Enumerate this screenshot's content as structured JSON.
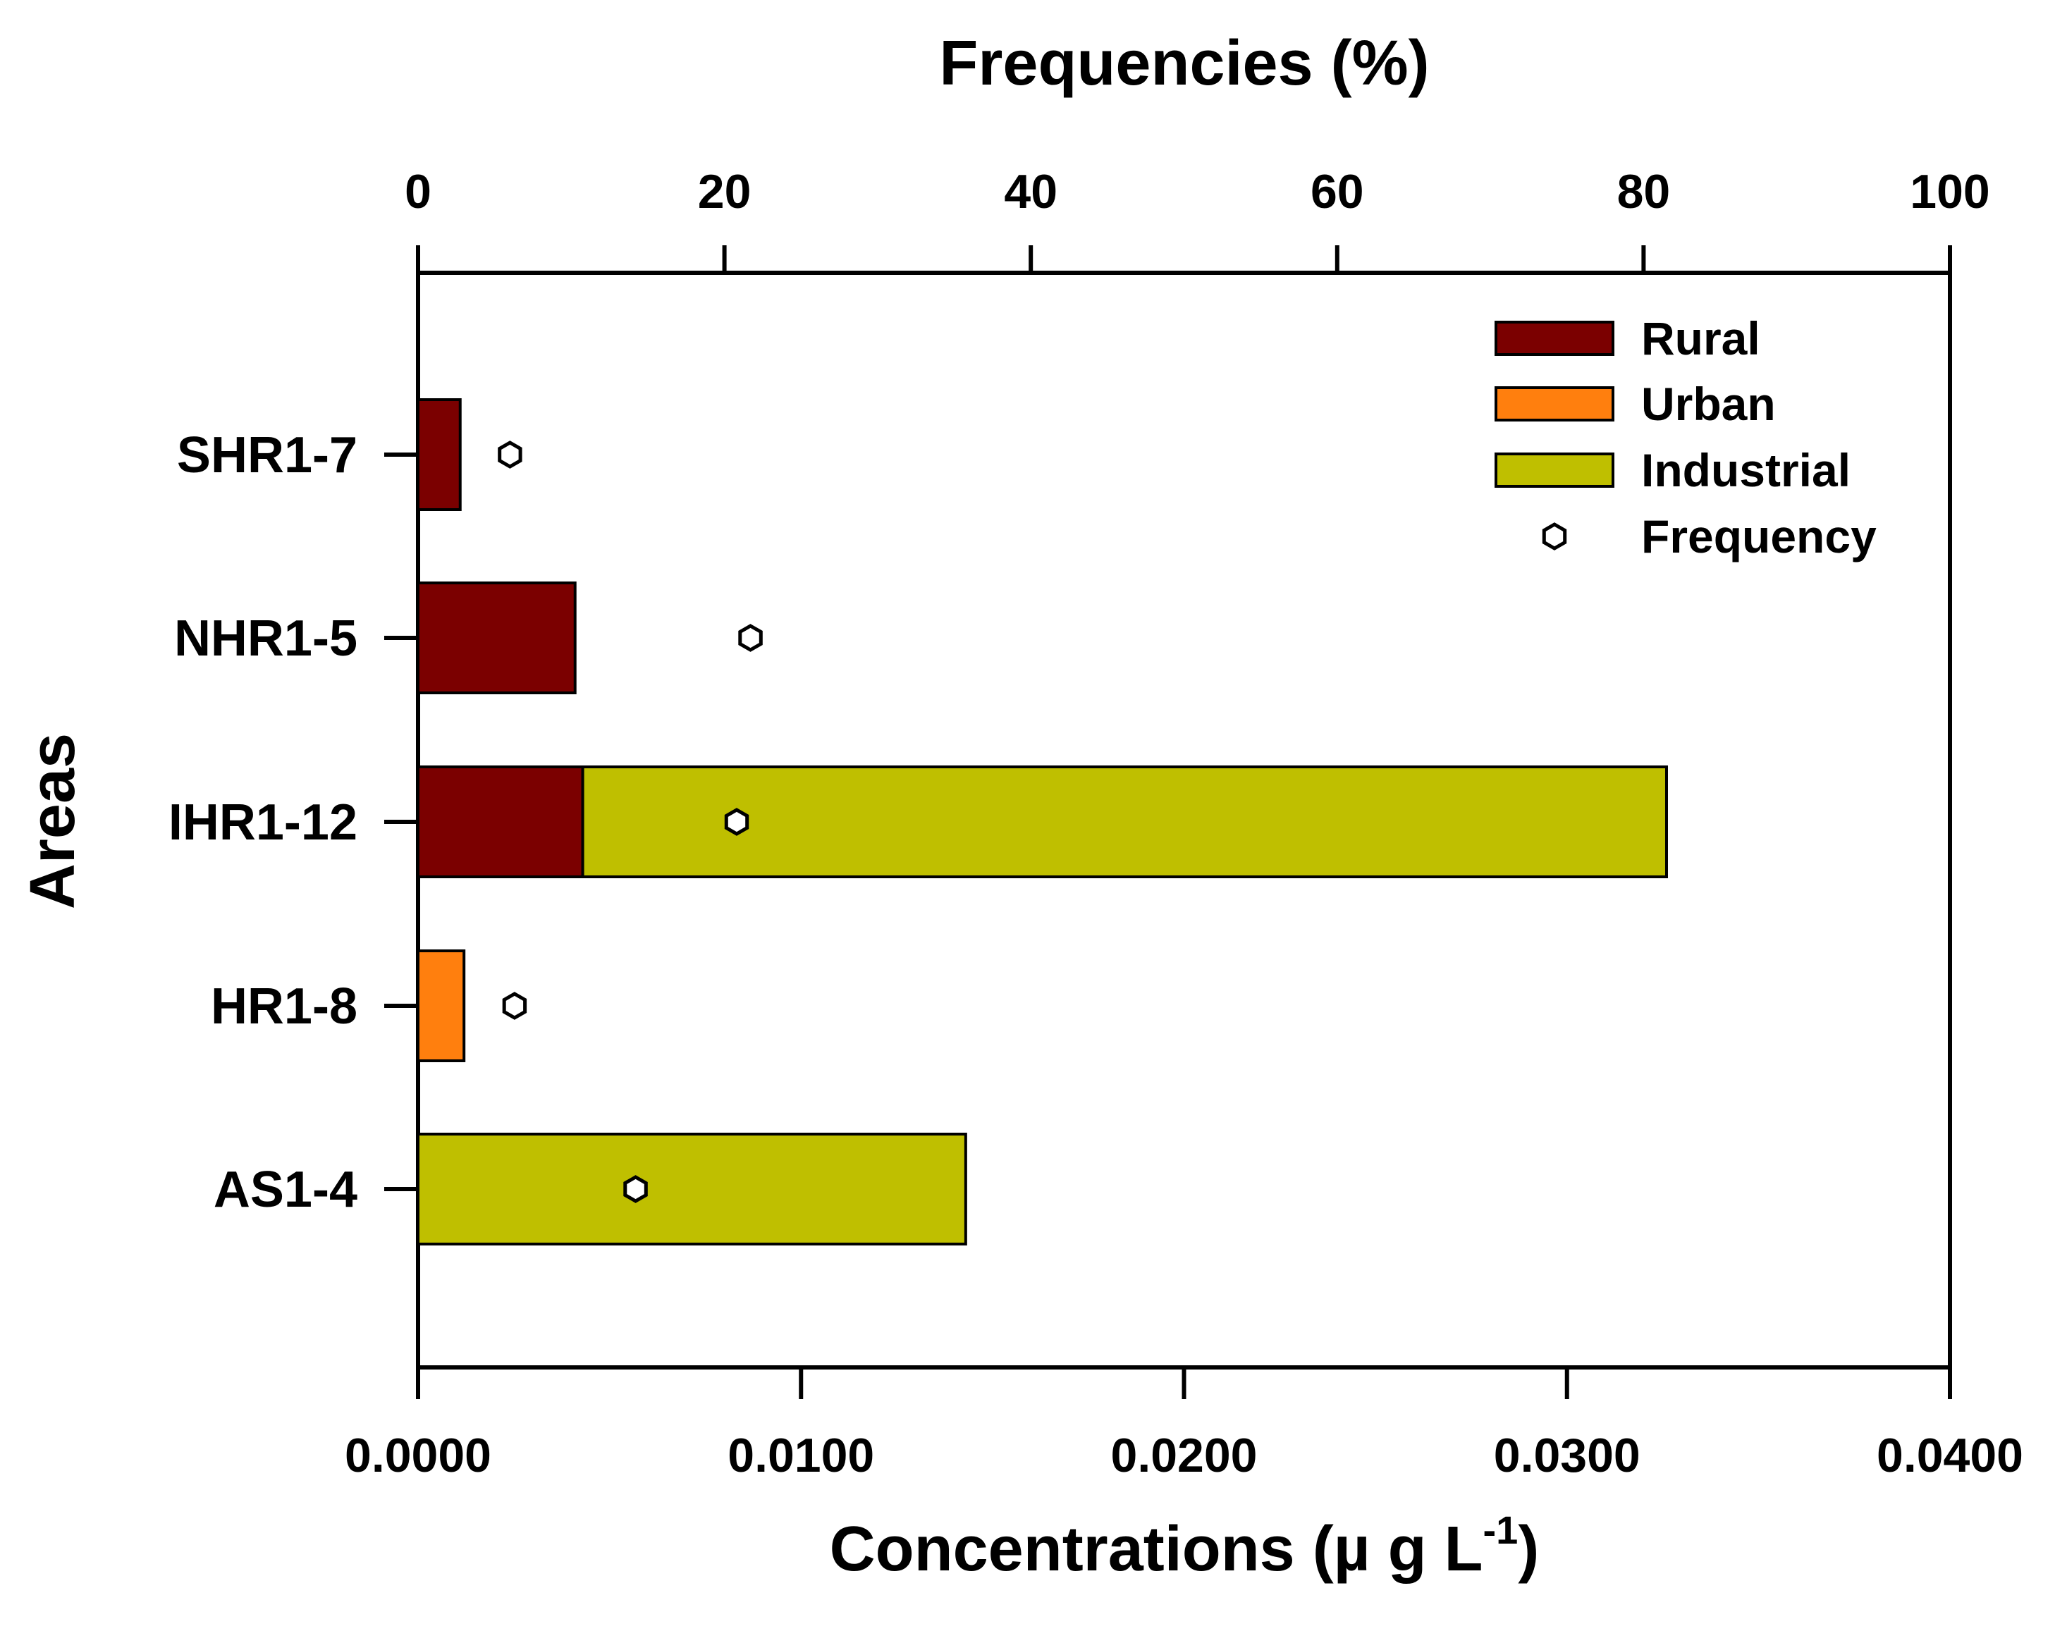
{
  "chart_data": {
    "type": "bar",
    "orientation": "horizontal",
    "stacked": true,
    "top_axis_title": "Frequencies (%)",
    "bottom_axis_title": "Concentrations (µ g L",
    "bottom_axis_title_sup": "-1",
    "bottom_axis_title_close": ")",
    "y_axis_title": "Areas",
    "categories": [
      "SHR1-7",
      "NHR1-5",
      "IHR1-12",
      "HR1-8",
      "AS1-4"
    ],
    "concentration_axis": {
      "range": [
        0,
        0.04
      ],
      "ticks": [
        0,
        0.01,
        0.02,
        0.03,
        0.04
      ],
      "tick_labels": [
        "0.0000",
        "0.0100",
        "0.0200",
        "0.0300",
        "0.0400"
      ]
    },
    "frequency_axis": {
      "range": [
        0,
        100
      ],
      "ticks": [
        0,
        20,
        40,
        60,
        80,
        100
      ],
      "tick_labels": [
        "0",
        "20",
        "40",
        "60",
        "80",
        "100"
      ]
    },
    "series": [
      {
        "name": "Rural",
        "color": "#7b0000",
        "values": [
          0.0011,
          0.0041,
          0.0043,
          0,
          0
        ]
      },
      {
        "name": "Urban",
        "color": "#ff7f0e",
        "values": [
          0,
          0,
          0,
          0.0012,
          0
        ]
      },
      {
        "name": "Industrial",
        "color": "#bfbf00",
        "values": [
          0,
          0,
          0.0283,
          0,
          0.0143
        ]
      }
    ],
    "frequency": {
      "name": "Frequency",
      "marker": "hexagon",
      "values": [
        6,
        21.7,
        20.8,
        6.3,
        14.2
      ]
    },
    "legend": {
      "position": "top-right",
      "entries": [
        "Rural",
        "Urban",
        "Industrial",
        "Frequency"
      ]
    }
  }
}
